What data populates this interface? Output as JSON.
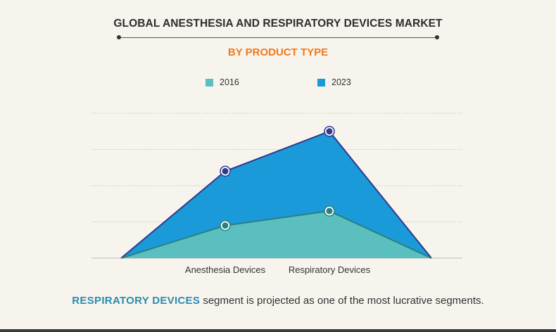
{
  "title": "GLOBAL ANESTHESIA AND RESPIRATORY DEVICES MARKET",
  "subtitle": "BY PRODUCT TYPE",
  "footnote": {
    "highlight": "RESPIRATORY DEVICES",
    "rest": " segment is projected as one of the most lucrative segments."
  },
  "colors": {
    "series_2016": "#5bbfbf",
    "series_2023": "#1a9ad9",
    "line_2016": "#2a8080",
    "line_2023": "#2e3a8c",
    "subtitle": "#f07a1a",
    "highlight": "#2a8cb0"
  },
  "chart_data": {
    "type": "area",
    "categories": [
      "",
      "Anesthesia Devices",
      "Respiratory Devices",
      ""
    ],
    "series": [
      {
        "name": "2016",
        "values": [
          0,
          0.9,
          1.3,
          0
        ]
      },
      {
        "name": "2023",
        "values": [
          0,
          2.4,
          3.5,
          0
        ]
      }
    ],
    "ylim": [
      0,
      4
    ],
    "grid": true,
    "legend": "top-center"
  }
}
